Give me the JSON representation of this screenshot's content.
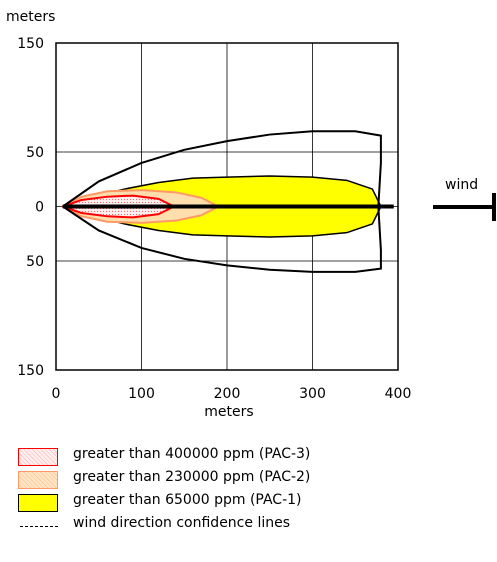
{
  "chart_data": {
    "type": "area",
    "title": "",
    "ylabel": "meters",
    "xlabel": "meters",
    "xlim": [
      0,
      400
    ],
    "ylim": [
      -150,
      150
    ],
    "x_ticks": [
      0,
      100,
      200,
      300,
      400
    ],
    "y_ticks": [
      150,
      50,
      0,
      50,
      150
    ],
    "y_tick_values": [
      150,
      50,
      0,
      -50,
      -150
    ],
    "grid": true,
    "wind_label": "wind",
    "series": [
      {
        "name": "greater than 65000 ppm (PAC-1)",
        "color": "#ffff00",
        "stroke": "#000000",
        "x": [
          8,
          40,
          80,
          120,
          160,
          200,
          250,
          300,
          340,
          370,
          380
        ],
        "half_width": [
          0,
          8,
          16,
          22,
          26,
          27,
          28,
          27,
          24,
          16,
          0
        ]
      },
      {
        "name": "greater than 230000 ppm (PAC-2)",
        "color": "#ffdead",
        "stroke": "#ff9966",
        "x": [
          8,
          30,
          60,
          100,
          140,
          170,
          190
        ],
        "half_width": [
          0,
          9,
          14,
          15,
          13,
          8,
          0
        ]
      },
      {
        "name": "greater than 400000 ppm (PAC-3)",
        "color": "#ffffff",
        "stroke": "#ff0000",
        "x": [
          8,
          30,
          60,
          90,
          120,
          138
        ],
        "half_width": [
          0,
          6,
          9,
          10,
          7,
          0
        ]
      }
    ],
    "confidence_lines": {
      "name": "wind direction confidence lines",
      "x": [
        8,
        50,
        100,
        150,
        200,
        250,
        300,
        350,
        380,
        380,
        377
      ],
      "upper": [
        0,
        23,
        40,
        52,
        60,
        66,
        69,
        69,
        65,
        40,
        0
      ],
      "lower": [
        0,
        -22,
        -38,
        -48,
        -54,
        -58,
        -60,
        -60,
        -57,
        -40,
        0
      ]
    },
    "centerline": {
      "x": [
        8,
        395
      ],
      "y": [
        0,
        0
      ]
    },
    "legend": [
      {
        "label": "greater than 400000 ppm (PAC-3)",
        "fill": "#ffe8e8",
        "stroke": "#ff0000"
      },
      {
        "label": "greater than 230000 ppm (PAC-2)",
        "fill": "#ffdead",
        "stroke": "#ff9966"
      },
      {
        "label": "greater than 65000 ppm (PAC-1)",
        "fill": "#ffff00",
        "stroke": "#000000"
      },
      {
        "label": "wind direction confidence lines"
      }
    ]
  }
}
